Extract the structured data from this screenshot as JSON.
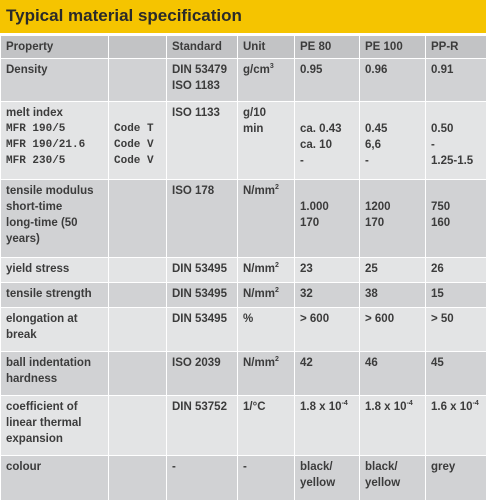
{
  "title": "Typical material specification",
  "header": {
    "property": "Property",
    "standard": "Standard",
    "unit": "Unit",
    "pe80": "PE 80",
    "pe100": "PE 100",
    "ppr": "PP-R"
  },
  "rows": {
    "density": {
      "property": "Density",
      "standard_1": "DIN 53479",
      "standard_2": "ISO 1183",
      "unit_base": "g/cm",
      "unit_sup": "3",
      "pe80": "0.95",
      "pe100": "0.96",
      "ppr": "0.91"
    },
    "melt_index": {
      "property": "melt index",
      "line_1": "MFR 190/5",
      "line_2": "MFR 190/21.6",
      "line_3": "MFR 230/5",
      "code_1": "Code T",
      "code_2": "Code V",
      "code_3": "Code V",
      "standard": "ISO 1133",
      "unit_1": "g/10",
      "unit_2": "min",
      "pe80_1": "ca. 0.43",
      "pe80_2": "ca. 10",
      "pe80_3": "-",
      "pe100_1": "0.45",
      "pe100_2": "6,6",
      "pe100_3": "-",
      "ppr_1": "0.50",
      "ppr_2": "-",
      "ppr_3": "1.25-1.5"
    },
    "tensile_modulus": {
      "property_1": "tensile modulus",
      "property_2": "short-time",
      "property_3": "long-time (50",
      "property_4": "years)",
      "standard": "ISO 178",
      "unit_base": "N/mm",
      "unit_sup": "2",
      "pe80_1": "1.000",
      "pe80_2": "170",
      "pe100_1": "1200",
      "pe100_2": "170",
      "ppr_1": "750",
      "ppr_2": "160"
    },
    "yield_stress": {
      "property": "yield stress",
      "standard": "DIN 53495",
      "unit_base": "N/mm",
      "unit_sup": "2",
      "pe80": "23",
      "pe100": "25",
      "ppr": "26"
    },
    "tensile_strength": {
      "property": "tensile strength",
      "standard": "DIN 53495",
      "unit_base": "N/mm",
      "unit_sup": "2",
      "pe80": "32",
      "pe100": "38",
      "ppr": "15"
    },
    "elongation": {
      "property_1": "elongation at",
      "property_2": "break",
      "standard": "DIN 53495",
      "unit": "%",
      "pe80": "> 600",
      "pe100": "> 600",
      "ppr": "> 50"
    },
    "ball_indentation": {
      "property_1": "ball indentation",
      "property_2": "hardness",
      "standard": "ISO 2039",
      "unit_base": "N/mm",
      "unit_sup": "2",
      "pe80": "42",
      "pe100": "46",
      "ppr": "45"
    },
    "thermal_expansion": {
      "property_1": "coefficient of",
      "property_2": "linear thermal",
      "property_3": "expansion",
      "standard": "DIN 53752",
      "unit": "1/°C",
      "pe80_base": "1.8 x 10",
      "pe80_sup": "-4",
      "pe100_base": "1.8 x 10",
      "pe100_sup": "-4",
      "ppr_base": "1.6 x 10",
      "ppr_sup": "-4"
    },
    "colour": {
      "property": "colour",
      "standard": "-",
      "unit": "-",
      "pe80_1": "black/",
      "pe80_2": "yellow",
      "pe100_1": "black/",
      "pe100_2": "yellow",
      "ppr": "grey"
    }
  }
}
